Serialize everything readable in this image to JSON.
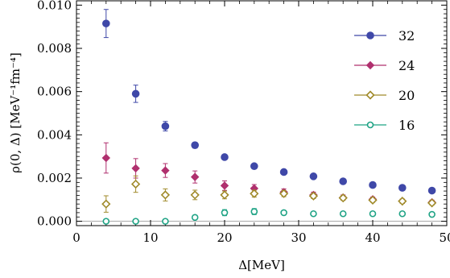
{
  "chart_data": {
    "type": "scatter",
    "xlabel": "Δ[MeV]",
    "ylabel": "ρ(0, Δ) [MeV⁻¹fm⁻⁴]",
    "xlim": [
      0,
      50
    ],
    "ylim": [
      -0.0002,
      0.0102
    ],
    "xticks": [
      0,
      10,
      20,
      30,
      40,
      50
    ],
    "xtick_labels": [
      "0",
      "10",
      "20",
      "30",
      "40",
      "50"
    ],
    "yticks": [
      0.0,
      0.002,
      0.004,
      0.006,
      0.008,
      0.01
    ],
    "ytick_labels": [
      "0.000",
      "0.002",
      "0.004",
      "0.006",
      "0.008",
      "0.010"
    ],
    "grid": false,
    "legend_position": "top-right",
    "series": [
      {
        "name": "32",
        "marker": "filled-circle",
        "color": "#3f48a8",
        "x": [
          4,
          8,
          12,
          16,
          20,
          24,
          28,
          32,
          36,
          40,
          44,
          48
        ],
        "y": [
          0.00915,
          0.0059,
          0.0044,
          0.00352,
          0.00297,
          0.00255,
          0.00228,
          0.00208,
          0.00185,
          0.00168,
          0.00155,
          0.00142
        ],
        "err": [
          0.00065,
          0.0004,
          0.00022,
          0.00013,
          0.00011,
          0.0001,
          8e-05,
          7e-05,
          7e-05,
          6e-05,
          6e-05,
          6e-05
        ]
      },
      {
        "name": "24",
        "marker": "filled-diamond",
        "color": "#b0306e",
        "x": [
          4,
          8,
          12,
          16,
          20,
          24,
          28,
          32,
          36,
          40,
          44,
          48
        ],
        "y": [
          0.00293,
          0.00245,
          0.00235,
          0.00205,
          0.00165,
          0.00152,
          0.00135,
          0.00122,
          0.0011,
          0.00102,
          0.00093,
          0.00088
        ],
        "err": [
          0.0007,
          0.00045,
          0.00032,
          0.00028,
          0.00022,
          0.00018,
          0.00015,
          0.00013,
          0.00012,
          0.0001,
          0.0001,
          0.0001
        ]
      },
      {
        "name": "20",
        "marker": "open-diamond",
        "color": "#a08a2a",
        "x": [
          4,
          8,
          12,
          16,
          20,
          24,
          28,
          32,
          36,
          40,
          44,
          48
        ],
        "y": [
          0.0008,
          0.00172,
          0.00122,
          0.00122,
          0.00122,
          0.00128,
          0.00128,
          0.00117,
          0.00108,
          0.00098,
          0.00093,
          0.00085
        ],
        "err": [
          0.00038,
          0.00038,
          0.00028,
          0.00022,
          0.00018,
          0.00016,
          0.00014,
          0.00012,
          0.00011,
          0.0001,
          0.0001,
          0.0001
        ]
      },
      {
        "name": "16",
        "marker": "open-circle",
        "color": "#1fa385",
        "x": [
          4,
          8,
          12,
          16,
          20,
          24,
          28,
          32,
          36,
          40,
          44,
          48
        ],
        "y": [
          0.0,
          0.0,
          0.0,
          0.00018,
          0.0004,
          0.00045,
          0.0004,
          0.00035,
          0.00035,
          0.00035,
          0.00035,
          0.00032
        ],
        "err": [
          2e-05,
          2e-05,
          2e-05,
          5e-05,
          0.00014,
          0.00014,
          8e-05,
          6e-05,
          5e-05,
          5e-05,
          6e-05,
          6e-05
        ]
      }
    ]
  }
}
